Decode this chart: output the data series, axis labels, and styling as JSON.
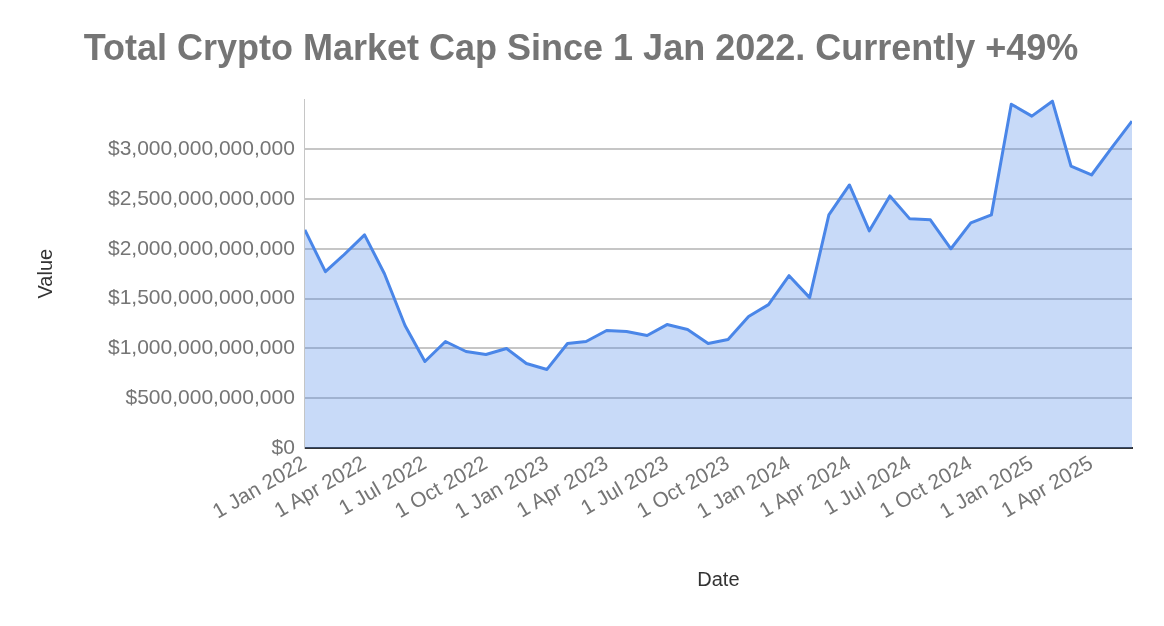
{
  "chart_data": {
    "type": "area",
    "title": "Total Crypto Market Cap Since 1 Jan 2022. Currently +49%",
    "xlabel": "Date",
    "ylabel": "Value",
    "x": [
      "2022-01-01",
      "2022-02-01",
      "2022-03-01",
      "2022-04-01",
      "2022-05-01",
      "2022-06-01",
      "2022-07-01",
      "2022-08-01",
      "2022-09-01",
      "2022-10-01",
      "2022-11-01",
      "2022-12-01",
      "2023-01-01",
      "2023-02-01",
      "2023-03-01",
      "2023-04-01",
      "2023-05-01",
      "2023-06-01",
      "2023-07-01",
      "2023-08-01",
      "2023-09-01",
      "2023-10-01",
      "2023-11-01",
      "2023-12-01",
      "2024-01-01",
      "2024-02-01",
      "2024-03-01",
      "2024-04-01",
      "2024-05-01",
      "2024-06-01",
      "2024-07-01",
      "2024-08-01",
      "2024-09-01",
      "2024-10-01",
      "2024-11-01",
      "2024-12-01",
      "2025-01-01",
      "2025-02-01",
      "2025-03-01",
      "2025-04-01",
      "2025-05-01",
      "2025-06-01"
    ],
    "series": [
      {
        "color": "#4a86e8",
        "values": [
          2190000000000,
          1770000000000,
          1940000000000,
          2140000000000,
          1750000000000,
          1230000000000,
          870000000000,
          1070000000000,
          970000000000,
          940000000000,
          1000000000000,
          850000000000,
          790000000000,
          1050000000000,
          1070000000000,
          1180000000000,
          1170000000000,
          1130000000000,
          1240000000000,
          1190000000000,
          1050000000000,
          1090000000000,
          1320000000000,
          1440000000000,
          1730000000000,
          1510000000000,
          2340000000000,
          2640000000000,
          2180000000000,
          2530000000000,
          2300000000000,
          2290000000000,
          2000000000000,
          2260000000000,
          2340000000000,
          3450000000000,
          3330000000000,
          3480000000000,
          2830000000000,
          2740000000000,
          3010000000000,
          3280000000000
        ]
      }
    ],
    "xlim": [
      "2022-01-01",
      "2025-06-01"
    ],
    "xticks": [
      {
        "value": "2022-01-01",
        "label": "1 Jan 2022"
      },
      {
        "value": "2022-04-01",
        "label": "1 Apr 2022"
      },
      {
        "value": "2022-07-01",
        "label": "1 Jul 2022"
      },
      {
        "value": "2022-10-01",
        "label": "1 Oct 2022"
      },
      {
        "value": "2023-01-01",
        "label": "1 Jan 2023"
      },
      {
        "value": "2023-04-01",
        "label": "1 Apr 2023"
      },
      {
        "value": "2023-07-01",
        "label": "1 Jul 2023"
      },
      {
        "value": "2023-10-01",
        "label": "1 Oct 2023"
      },
      {
        "value": "2024-01-01",
        "label": "1 Jan 2024"
      },
      {
        "value": "2024-04-01",
        "label": "1 Apr 2024"
      },
      {
        "value": "2024-07-01",
        "label": "1 Jul 2024"
      },
      {
        "value": "2024-10-01",
        "label": "1 Oct 2024"
      },
      {
        "value": "2025-01-01",
        "label": "1 Jan 2025"
      },
      {
        "value": "2025-04-01",
        "label": "1 Apr 2025"
      }
    ],
    "ylim": [
      0,
      3500000000000
    ],
    "yticks": [
      {
        "value": 0,
        "label": "$0"
      },
      {
        "value": 500000000000,
        "label": "$500,000,000,000"
      },
      {
        "value": 1000000000000,
        "label": "$1,000,000,000,000"
      },
      {
        "value": 1500000000000,
        "label": "$1,500,000,000,000"
      },
      {
        "value": 2000000000000,
        "label": "$2,000,000,000,000"
      },
      {
        "value": 2500000000000,
        "label": "$2,500,000,000,000"
      },
      {
        "value": 3000000000000,
        "label": "$3,000,000,000,000"
      }
    ],
    "grid": "y",
    "legend": false,
    "marker": "none"
  }
}
